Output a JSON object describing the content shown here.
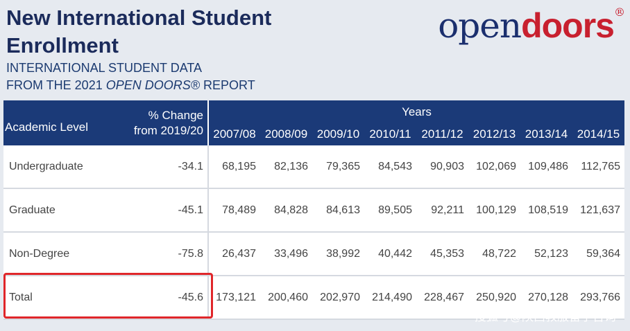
{
  "header": {
    "title": "New International Student Enrollment",
    "subtitle_line1": "INTERNATIONAL STUDENT DATA",
    "subtitle_line2_prefix": "FROM THE 2021",
    "subtitle_line2_italic": "OPEN DOORS®",
    "subtitle_line2_suffix": "REPORT"
  },
  "logo": {
    "part1": "open",
    "part2": "doors",
    "mark": "®"
  },
  "table": {
    "col_level": "Academic Level",
    "col_change": "% Change from 2019/20",
    "years_label": "Years",
    "years": [
      "2007/08",
      "2008/09",
      "2009/10",
      "2010/11",
      "2011/12",
      "2012/13",
      "2013/14",
      "2014/15"
    ],
    "rows": [
      [
        "Undergraduate",
        "-34.1",
        "68,195",
        "82,136",
        "79,365",
        "84,543",
        "90,903",
        "102,069",
        "109,486",
        "112,765"
      ],
      [
        "Graduate",
        "-45.1",
        "78,489",
        "84,828",
        "84,613",
        "89,505",
        "92,211",
        "100,129",
        "108,519",
        "121,637"
      ],
      [
        "Non-Degree",
        "-75.8",
        "26,437",
        "33,496",
        "38,992",
        "40,442",
        "45,353",
        "48,722",
        "52,123",
        "59,364"
      ],
      [
        "Total",
        "-45.6",
        "173,121",
        "200,460",
        "202,970",
        "214,490",
        "228,467",
        "250,920",
        "270,128",
        "293,766"
      ]
    ]
  },
  "watermark": "搜狐号@陕西教服留学咨询"
}
